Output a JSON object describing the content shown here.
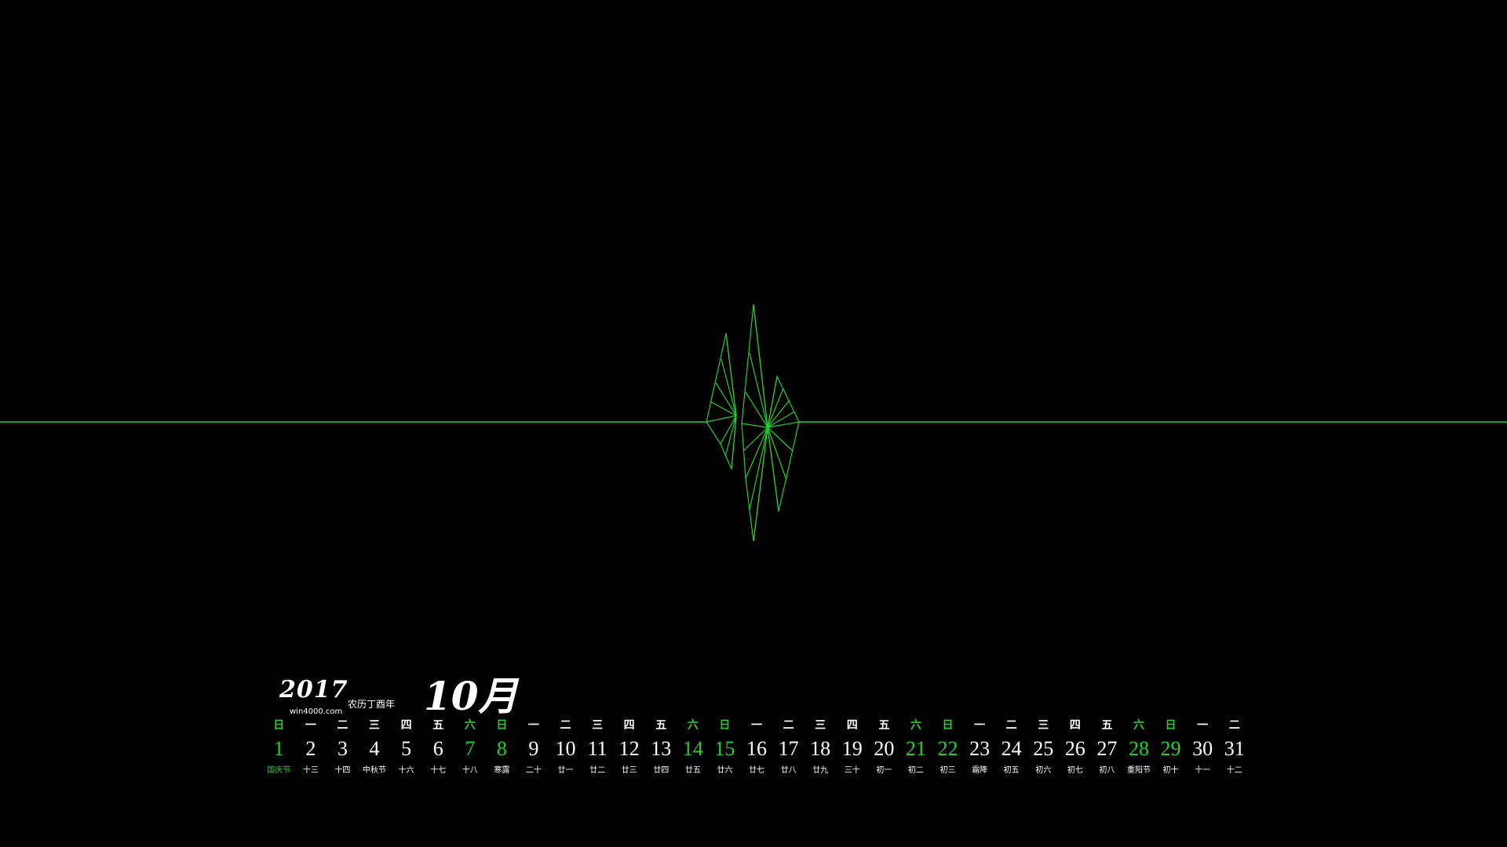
{
  "accent_color": "#23d12b",
  "background_color": "#000000",
  "calendar": {
    "year": "2017",
    "lunar_year": "农历丁酉年",
    "site": "win4000.com",
    "month": "10月",
    "days": [
      {
        "day": "1",
        "weekday": "日",
        "lunar": "国庆节",
        "weekend": true,
        "lunar_green": true
      },
      {
        "day": "2",
        "weekday": "一",
        "lunar": "十三",
        "weekend": false,
        "lunar_green": false
      },
      {
        "day": "3",
        "weekday": "二",
        "lunar": "十四",
        "weekend": false,
        "lunar_green": false
      },
      {
        "day": "4",
        "weekday": "三",
        "lunar": "中秋节",
        "weekend": false,
        "lunar_green": false
      },
      {
        "day": "5",
        "weekday": "四",
        "lunar": "十六",
        "weekend": false,
        "lunar_green": false
      },
      {
        "day": "6",
        "weekday": "五",
        "lunar": "十七",
        "weekend": false,
        "lunar_green": false
      },
      {
        "day": "7",
        "weekday": "六",
        "lunar": "十八",
        "weekend": true,
        "lunar_green": false
      },
      {
        "day": "8",
        "weekday": "日",
        "lunar": "寒露",
        "weekend": true,
        "lunar_green": false
      },
      {
        "day": "9",
        "weekday": "一",
        "lunar": "二十",
        "weekend": false,
        "lunar_green": false
      },
      {
        "day": "10",
        "weekday": "二",
        "lunar": "廿一",
        "weekend": false,
        "lunar_green": false
      },
      {
        "day": "11",
        "weekday": "三",
        "lunar": "廿二",
        "weekend": false,
        "lunar_green": false
      },
      {
        "day": "12",
        "weekday": "四",
        "lunar": "廿三",
        "weekend": false,
        "lunar_green": false
      },
      {
        "day": "13",
        "weekday": "五",
        "lunar": "廿四",
        "weekend": false,
        "lunar_green": false
      },
      {
        "day": "14",
        "weekday": "六",
        "lunar": "廿五",
        "weekend": true,
        "lunar_green": false
      },
      {
        "day": "15",
        "weekday": "日",
        "lunar": "廿六",
        "weekend": true,
        "lunar_green": false
      },
      {
        "day": "16",
        "weekday": "一",
        "lunar": "廿七",
        "weekend": false,
        "lunar_green": false
      },
      {
        "day": "17",
        "weekday": "二",
        "lunar": "廿八",
        "weekend": false,
        "lunar_green": false
      },
      {
        "day": "18",
        "weekday": "三",
        "lunar": "廿九",
        "weekend": false,
        "lunar_green": false
      },
      {
        "day": "19",
        "weekday": "四",
        "lunar": "三十",
        "weekend": false,
        "lunar_green": false
      },
      {
        "day": "20",
        "weekday": "五",
        "lunar": "初一",
        "weekend": false,
        "lunar_green": false
      },
      {
        "day": "21",
        "weekday": "六",
        "lunar": "初二",
        "weekend": true,
        "lunar_green": false
      },
      {
        "day": "22",
        "weekday": "日",
        "lunar": "初三",
        "weekend": true,
        "lunar_green": false
      },
      {
        "day": "23",
        "weekday": "一",
        "lunar": "霜降",
        "weekend": false,
        "lunar_green": false
      },
      {
        "day": "24",
        "weekday": "二",
        "lunar": "初五",
        "weekend": false,
        "lunar_green": false
      },
      {
        "day": "25",
        "weekday": "三",
        "lunar": "初六",
        "weekend": false,
        "lunar_green": false
      },
      {
        "day": "26",
        "weekday": "四",
        "lunar": "初七",
        "weekend": false,
        "lunar_green": false
      },
      {
        "day": "27",
        "weekday": "五",
        "lunar": "初八",
        "weekend": false,
        "lunar_green": false
      },
      {
        "day": "28",
        "weekday": "六",
        "lunar": "重阳节",
        "weekend": true,
        "lunar_green": false
      },
      {
        "day": "29",
        "weekday": "日",
        "lunar": "初十",
        "weekend": true,
        "lunar_green": false
      },
      {
        "day": "30",
        "weekday": "一",
        "lunar": "十一",
        "weekend": false,
        "lunar_green": false
      },
      {
        "day": "31",
        "weekday": "二",
        "lunar": "十二",
        "weekend": false,
        "lunar_green": false
      }
    ]
  }
}
